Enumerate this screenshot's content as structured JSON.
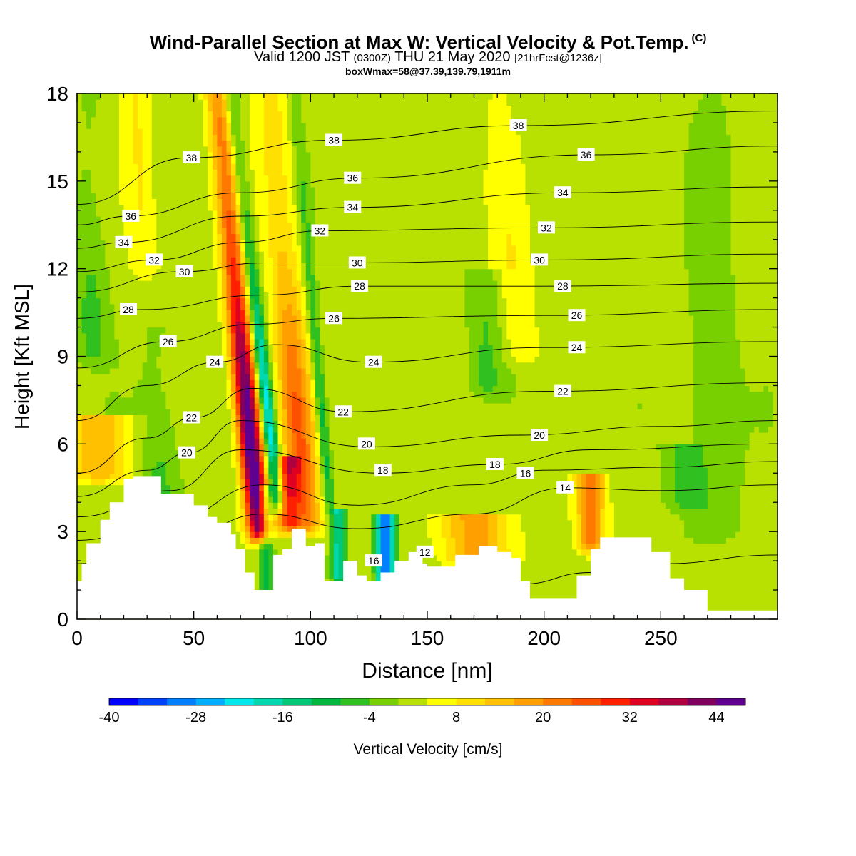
{
  "title": {
    "main": "Wind-Parallel Section at Max W: Vertical Velocity & Pot.Temp.",
    "copyright": "(C)",
    "valid_prefix": "Valid 1200 JST",
    "valid_z": "(0300Z)",
    "valid_date": "THU 21 May 2020",
    "forecast": "[21hrFcst@1236z]",
    "boxmax": "boxWmax=58@37.39,139.79,1911m"
  },
  "chart_data": {
    "type": "heatmap",
    "xlabel": "Distance [nm]",
    "ylabel": "Height [Kft MSL]",
    "xlim": [
      0,
      300
    ],
    "ylim": [
      0,
      18
    ],
    "x_ticks": [
      "0",
      "50",
      "100",
      "150",
      "200",
      "250"
    ],
    "y_ticks": [
      "0",
      "3",
      "6",
      "9",
      "12",
      "15",
      "18"
    ],
    "colorbar": {
      "label": "Vertical Velocity [cm/s]",
      "tick_labels": [
        "-40",
        "-28",
        "-16",
        "-4",
        "8",
        "20",
        "32",
        "44"
      ],
      "colors": [
        "#0000ff",
        "#0040ff",
        "#0080ff",
        "#00b0ff",
        "#00e8e8",
        "#00d8b0",
        "#00c878",
        "#00b840",
        "#30c020",
        "#78d000",
        "#b8e000",
        "#ffff00",
        "#ffe000",
        "#ffc000",
        "#ffa000",
        "#ff7800",
        "#ff5000",
        "#ff2000",
        "#e00020",
        "#b00040",
        "#800060",
        "#600090"
      ]
    },
    "terrain_profile": [
      [
        0,
        1.3
      ],
      [
        2,
        1.9
      ],
      [
        4,
        2.6
      ],
      [
        10,
        3.4
      ],
      [
        14,
        4.0
      ],
      [
        20,
        4.8
      ],
      [
        24,
        4.9
      ],
      [
        32,
        4.9
      ],
      [
        36,
        4.3
      ],
      [
        46,
        4.3
      ],
      [
        50,
        3.9
      ],
      [
        56,
        3.5
      ],
      [
        60,
        3.3
      ],
      [
        66,
        2.9
      ],
      [
        68,
        2.4
      ],
      [
        72,
        1.6
      ],
      [
        76,
        1.0
      ],
      [
        80,
        1.0
      ],
      [
        84,
        2.2
      ],
      [
        88,
        2.4
      ],
      [
        92,
        3.1
      ],
      [
        96,
        3.1
      ],
      [
        98,
        2.5
      ],
      [
        102,
        2.6
      ],
      [
        106,
        1.3
      ],
      [
        110,
        1.3
      ],
      [
        114,
        2.0
      ],
      [
        120,
        1.5
      ],
      [
        124,
        1.3
      ],
      [
        130,
        1.6
      ],
      [
        136,
        2.0
      ],
      [
        142,
        2.3
      ],
      [
        148,
        1.9
      ],
      [
        150,
        1.8
      ],
      [
        162,
        2.2
      ],
      [
        172,
        2.5
      ],
      [
        180,
        2.3
      ],
      [
        186,
        2.1
      ],
      [
        190,
        1.3
      ],
      [
        194,
        0.7
      ],
      [
        206,
        0.7
      ],
      [
        214,
        1.5
      ],
      [
        220,
        2.4
      ],
      [
        224,
        2.8
      ],
      [
        238,
        2.8
      ],
      [
        246,
        2.3
      ],
      [
        254,
        1.4
      ],
      [
        260,
        1.0
      ],
      [
        270,
        0.3
      ],
      [
        300,
        0.3
      ]
    ],
    "series": [
      {
        "name": "12",
        "values": [
          [
            148,
            0.0
          ],
          [
            160,
            0.3
          ],
          [
            190,
            1.2
          ],
          [
            220,
            1.6
          ],
          [
            250,
            1.9
          ],
          [
            300,
            2.2
          ]
        ]
      },
      {
        "name": "14",
        "values": [
          [
            0,
            1.9
          ],
          [
            40,
            2.6
          ],
          [
            80,
            3.6
          ],
          [
            120,
            3.1
          ],
          [
            170,
            3.6
          ],
          [
            210,
            4.5
          ],
          [
            250,
            4.4
          ],
          [
            300,
            4.6
          ]
        ]
      },
      {
        "name": "16",
        "values": [
          [
            0,
            2.7
          ],
          [
            40,
            3.4
          ],
          [
            80,
            4.6
          ],
          [
            120,
            3.9
          ],
          [
            170,
            4.6
          ],
          [
            200,
            5.1
          ],
          [
            250,
            5.2
          ],
          [
            300,
            5.4
          ]
        ]
      },
      {
        "name": "18",
        "values": [
          [
            0,
            3.5
          ],
          [
            40,
            4.4
          ],
          [
            70,
            5.8
          ],
          [
            130,
            5.0
          ],
          [
            180,
            5.3
          ],
          [
            220,
            5.8
          ],
          [
            300,
            6.0
          ]
        ]
      },
      {
        "name": "20",
        "values": [
          [
            0,
            4.2
          ],
          [
            30,
            5.1
          ],
          [
            48,
            5.7
          ],
          [
            70,
            6.8
          ],
          [
            125,
            5.9
          ],
          [
            190,
            6.3
          ],
          [
            250,
            6.6
          ],
          [
            300,
            6.8
          ]
        ]
      },
      {
        "name": "22",
        "values": [
          [
            0,
            5.0
          ],
          [
            30,
            6.2
          ],
          [
            50,
            6.9
          ],
          [
            75,
            7.9
          ],
          [
            115,
            7.1
          ],
          [
            200,
            7.8
          ],
          [
            300,
            8.1
          ]
        ]
      },
      {
        "name": "24",
        "values": [
          [
            0,
            6.8
          ],
          [
            30,
            8.0
          ],
          [
            60,
            8.8
          ],
          [
            85,
            9.4
          ],
          [
            125,
            8.8
          ],
          [
            200,
            9.3
          ],
          [
            300,
            9.5
          ]
        ]
      },
      {
        "name": "26",
        "values": [
          [
            0,
            8.6
          ],
          [
            38,
            9.5
          ],
          [
            75,
            10.1
          ],
          [
            110,
            10.3
          ],
          [
            200,
            10.4
          ],
          [
            300,
            10.6
          ]
        ]
      },
      {
        "name": "28",
        "values": [
          [
            0,
            10.3
          ],
          [
            28,
            10.6
          ],
          [
            80,
            11.1
          ],
          [
            120,
            11.4
          ],
          [
            200,
            11.4
          ],
          [
            300,
            11.5
          ]
        ]
      },
      {
        "name": "30",
        "values": [
          [
            0,
            11.2
          ],
          [
            45,
            11.9
          ],
          [
            80,
            12.2
          ],
          [
            120,
            12.2
          ],
          [
            200,
            12.3
          ],
          [
            300,
            12.5
          ]
        ]
      },
      {
        "name": "32",
        "values": [
          [
            0,
            11.9
          ],
          [
            33,
            12.3
          ],
          [
            70,
            12.9
          ],
          [
            105,
            13.3
          ],
          [
            200,
            13.4
          ],
          [
            300,
            13.6
          ]
        ]
      },
      {
        "name": "34",
        "values": [
          [
            0,
            12.7
          ],
          [
            20,
            12.9
          ],
          [
            70,
            13.8
          ],
          [
            118,
            14.1
          ],
          [
            210,
            14.6
          ],
          [
            300,
            14.8
          ]
        ]
      },
      {
        "name": "36",
        "values": [
          [
            0,
            13.5
          ],
          [
            22,
            13.8
          ],
          [
            70,
            14.6
          ],
          [
            120,
            15.1
          ],
          [
            220,
            15.9
          ],
          [
            300,
            16.2
          ]
        ]
      },
      {
        "name": "38",
        "values": [
          [
            0,
            14.2
          ],
          [
            48,
            15.8
          ],
          [
            110,
            16.4
          ],
          [
            190,
            16.9
          ],
          [
            300,
            17.4
          ]
        ]
      }
    ],
    "contour_labels": [
      {
        "text": "38",
        "x": 49,
        "y": 15.8
      },
      {
        "text": "38",
        "x": 110,
        "y": 16.4
      },
      {
        "text": "38",
        "x": 189,
        "y": 16.9
      },
      {
        "text": "36",
        "x": 23,
        "y": 13.8
      },
      {
        "text": "36",
        "x": 118,
        "y": 15.1
      },
      {
        "text": "36",
        "x": 218,
        "y": 15.9
      },
      {
        "text": "34",
        "x": 20,
        "y": 12.9
      },
      {
        "text": "34",
        "x": 118,
        "y": 14.1
      },
      {
        "text": "34",
        "x": 208,
        "y": 14.6
      },
      {
        "text": "32",
        "x": 33,
        "y": 12.3
      },
      {
        "text": "32",
        "x": 104,
        "y": 13.3
      },
      {
        "text": "32",
        "x": 201,
        "y": 13.4
      },
      {
        "text": "30",
        "x": 46,
        "y": 11.9
      },
      {
        "text": "30",
        "x": 120,
        "y": 12.2
      },
      {
        "text": "30",
        "x": 198,
        "y": 12.3
      },
      {
        "text": "28",
        "x": 22,
        "y": 10.6
      },
      {
        "text": "28",
        "x": 121,
        "y": 11.4
      },
      {
        "text": "28",
        "x": 208,
        "y": 11.4
      },
      {
        "text": "26",
        "x": 39,
        "y": 9.5
      },
      {
        "text": "26",
        "x": 110,
        "y": 10.3
      },
      {
        "text": "26",
        "x": 214,
        "y": 10.4
      },
      {
        "text": "24",
        "x": 59,
        "y": 8.8
      },
      {
        "text": "24",
        "x": 127,
        "y": 8.8
      },
      {
        "text": "24",
        "x": 214,
        "y": 9.3
      },
      {
        "text": "22",
        "x": 49,
        "y": 6.9
      },
      {
        "text": "22",
        "x": 114,
        "y": 7.1
      },
      {
        "text": "22",
        "x": 208,
        "y": 7.8
      },
      {
        "text": "20",
        "x": 47,
        "y": 5.7
      },
      {
        "text": "20",
        "x": 124,
        "y": 6.0
      },
      {
        "text": "20",
        "x": 198,
        "y": 6.3
      },
      {
        "text": "18",
        "x": 131,
        "y": 5.1
      },
      {
        "text": "18",
        "x": 179,
        "y": 5.3
      },
      {
        "text": "16",
        "x": 192,
        "y": 5.0
      },
      {
        "text": "16",
        "x": 127,
        "y": 2.0
      },
      {
        "text": "14",
        "x": 209,
        "y": 4.5
      },
      {
        "text": "12",
        "x": 149,
        "y": 2.3
      }
    ],
    "updrafts": [
      {
        "x0": 78,
        "x1": 60,
        "y0": 3.0,
        "y1": 18,
        "half_width": 5,
        "peak": 50
      },
      {
        "x0": 98,
        "x1": 83,
        "y0": 3.2,
        "y1": 18,
        "half_width": 7,
        "peak": 22
      },
      {
        "x0": 90,
        "x1": 90,
        "y0": 3.3,
        "y1": 5.5,
        "half_width": 5,
        "peak": 22
      },
      {
        "x0": 170,
        "x1": 170,
        "y0": 2.2,
        "y1": 3.6,
        "half_width": 14,
        "peak": 16
      },
      {
        "x0": 220,
        "x1": 220,
        "y0": 2.6,
        "y1": 5.0,
        "half_width": 6,
        "peak": 20
      },
      {
        "x0": 190,
        "x1": 180,
        "y0": 9,
        "y1": 18,
        "half_width": 8,
        "peak": 6
      },
      {
        "x0": 10,
        "x1": 10,
        "y0": 5,
        "y1": 7,
        "half_width": 14,
        "peak": 14
      },
      {
        "x0": 30,
        "x1": 25,
        "y0": 12,
        "y1": 18,
        "half_width": 6,
        "peak": 6
      }
    ],
    "downdrafts": [
      {
        "x0": 86,
        "x1": 66,
        "y0": 4.0,
        "y1": 18,
        "half_width": 3,
        "peak": -26
      },
      {
        "x0": 108,
        "x1": 93,
        "y0": 4.0,
        "y1": 18,
        "half_width": 2.5,
        "peak": -14
      },
      {
        "x0": 132,
        "x1": 132,
        "y0": 1.2,
        "y1": 3.6,
        "half_width": 4,
        "peak": -36
      },
      {
        "x0": 112,
        "x1": 112,
        "y0": 1.5,
        "y1": 3.8,
        "half_width": 3,
        "peak": -20
      },
      {
        "x0": 81,
        "x1": 81,
        "y0": 1.0,
        "y1": 4.5,
        "half_width": 3,
        "peak": -14
      },
      {
        "x0": 35,
        "x1": 35,
        "y0": 3.5,
        "y1": 10,
        "half_width": 10,
        "peak": -8
      },
      {
        "x0": 6,
        "x1": 6,
        "y0": 9,
        "y1": 18,
        "half_width": 8,
        "peak": -7
      },
      {
        "x0": 272,
        "x1": 272,
        "y0": 3,
        "y1": 18,
        "half_width": 12,
        "peak": -6
      },
      {
        "x0": 175,
        "x1": 175,
        "y0": 8,
        "y1": 12,
        "half_width": 8,
        "peak": -6
      },
      {
        "x0": 260,
        "x1": 260,
        "y0": 4,
        "y1": 6,
        "half_width": 8,
        "peak": -6
      }
    ],
    "background_w": -2
  }
}
